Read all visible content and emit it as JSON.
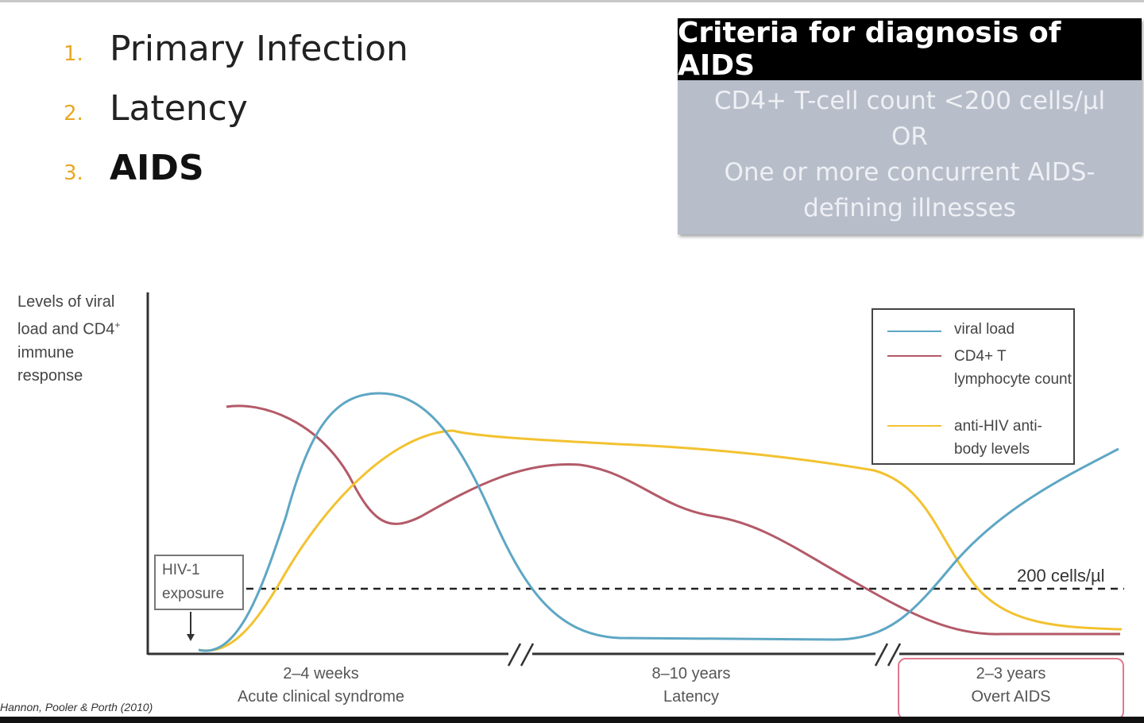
{
  "stages": [
    {
      "num": "1.",
      "label": "Primary Infection"
    },
    {
      "num": "2.",
      "label": "Latency"
    },
    {
      "num": "3.",
      "label": "AIDS"
    }
  ],
  "criteria": {
    "title": "Criteria for diagnosis of AIDS",
    "line1": "CD4+ T-cell count  <200 cells/µl",
    "line2": "OR",
    "line3": "One or more concurrent AIDS-",
    "line4": "defining  illnesses"
  },
  "diagram": {
    "y_axis_label": [
      "Levels of viral",
      "load and CD4",
      "immune",
      "response"
    ],
    "y_axis_sup": "+",
    "legend": [
      {
        "label": "viral load",
        "color": "#5ea6c4"
      },
      {
        "label": "CD4+ T lymphocyte count",
        "color": "#b35a68"
      },
      {
        "label": "anti-HIV anti- body levels",
        "color": "#f2c230"
      }
    ],
    "exposure_label": [
      "HIV-1",
      "exposure"
    ],
    "threshold_label": "200 cells/µl",
    "phases": [
      {
        "duration": "2–4 weeks",
        "name": "Acute clinical syndrome"
      },
      {
        "duration": "8–10 years",
        "name": "Latency"
      },
      {
        "duration": "2–3 years",
        "name": "Overt AIDS"
      }
    ],
    "citation": "Hannon, Pooler & Porth (2010)"
  }
}
